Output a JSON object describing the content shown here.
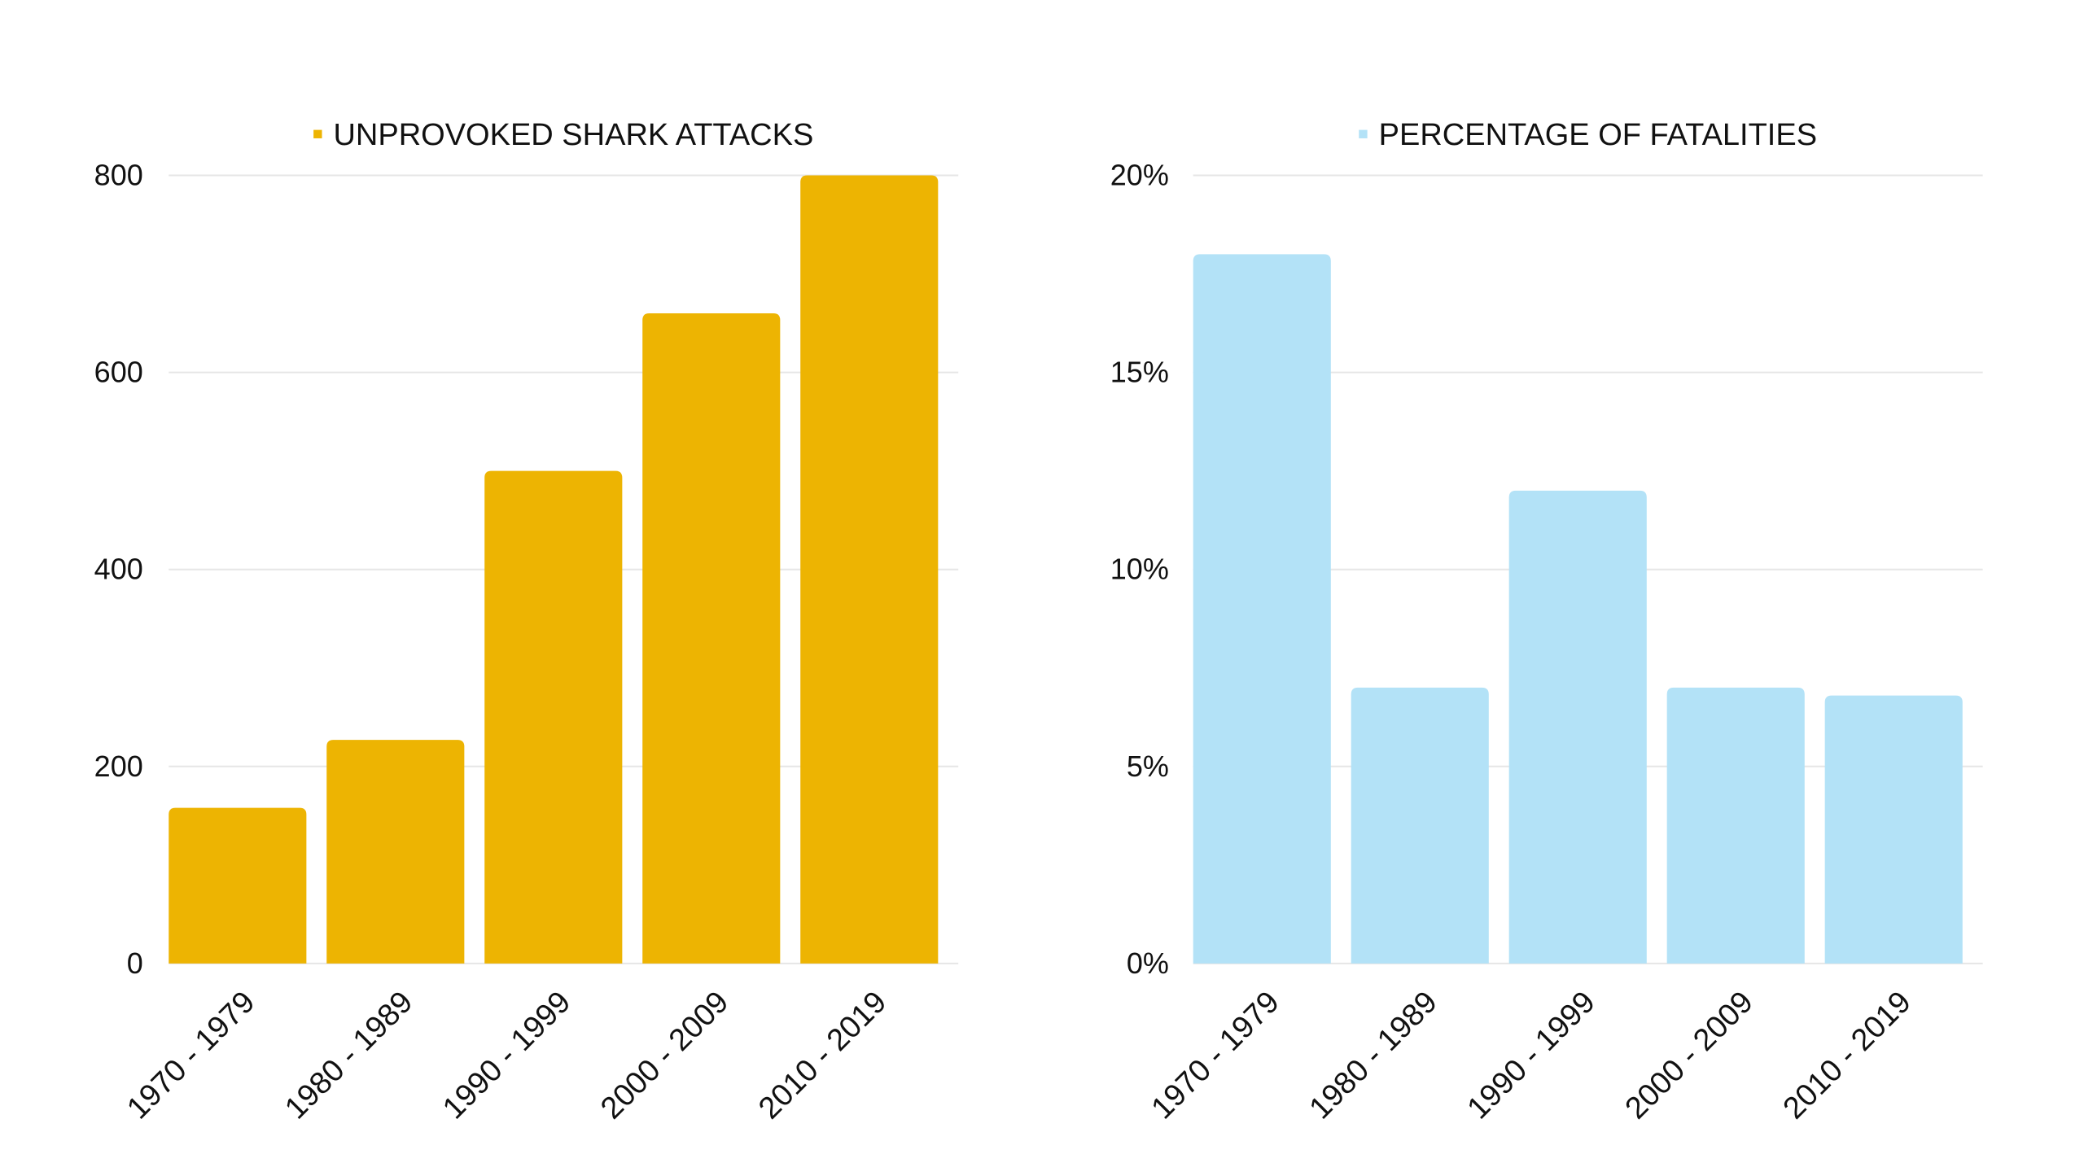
{
  "chart_data": [
    {
      "type": "bar",
      "categories": [
        "1970 - 1979",
        "1980 - 1989",
        "1990 - 1999",
        "2000 - 2009",
        "2010 - 2019"
      ],
      "series": [
        {
          "name": "UNPROVOKED SHARK ATTACKS",
          "values": [
            158,
            227,
            500,
            660,
            800
          ],
          "color": "#EDB402"
        }
      ],
      "ylim": [
        0,
        800
      ],
      "yticks": [
        "0",
        "200",
        "400",
        "600",
        "800"
      ],
      "ytick_values": [
        0,
        200,
        400,
        600,
        800
      ],
      "grid": true,
      "legend": "top-center"
    },
    {
      "type": "bar",
      "categories": [
        "1970 - 1979",
        "1980 - 1989",
        "1990 - 1999",
        "2000 - 2009",
        "2010 - 2019"
      ],
      "series": [
        {
          "name": "PERCENTAGE OF FATALITIES",
          "values": [
            18,
            7,
            12,
            7,
            6.8
          ],
          "color": "#B3E2F7"
        }
      ],
      "ylim": [
        0,
        20
      ],
      "yticks": [
        "0%",
        "5%",
        "10%",
        "15%",
        "20%"
      ],
      "ytick_values": [
        0,
        5,
        10,
        15,
        20
      ],
      "grid": true,
      "legend": "top-center"
    }
  ],
  "colors": {
    "grid": "#E6E6E6",
    "text": "#111111"
  }
}
